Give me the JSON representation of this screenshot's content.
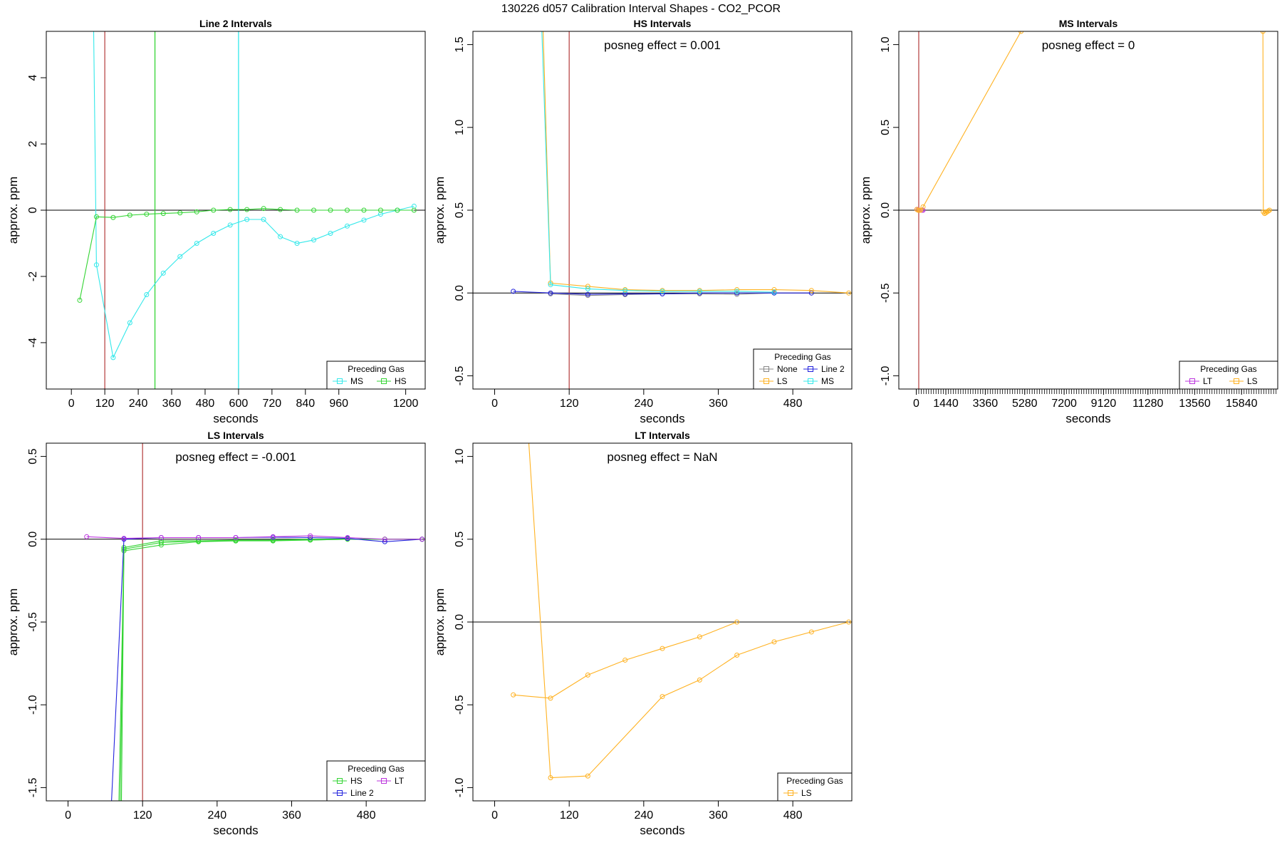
{
  "figure_title": "130226  d057   Calibration Interval Shapes - CO2_PCOR",
  "colors": {
    "MS": "#33e8ea",
    "HS": "#33d433",
    "LS": "#ffb222",
    "Line 2": "#2222dd",
    "LT": "#bb33dd",
    "None": "#888888",
    "ref": "#b94a4a",
    "axis": "#000000"
  },
  "chart_data": [
    {
      "type": "line",
      "title": "Line 2 Intervals",
      "xlabel": "seconds",
      "ylabel": "approx. ppm",
      "xlim": [
        -90,
        1270
      ],
      "ylim": [
        -5.4,
        5.4
      ],
      "xticks": [
        0,
        120,
        240,
        360,
        480,
        600,
        720,
        840,
        960,
        1200
      ],
      "xtick_labels": [
        "0",
        "120",
        "240",
        "360",
        "480",
        "600",
        "720",
        "840",
        "960",
        "1200"
      ],
      "yticks": [
        4,
        2,
        0,
        -2,
        -4
      ],
      "ytick_labels": [
        "4",
        "2",
        "0",
        "-2",
        "-4"
      ],
      "vlines": [
        {
          "x": 120,
          "color": "#b94a4a"
        },
        {
          "x": 300,
          "color": "#33d433"
        },
        {
          "x": 600,
          "color": "#33e8ea"
        }
      ],
      "note": "",
      "legend": {
        "title": "Preceding Gas",
        "entries": [
          "MS",
          "HS"
        ],
        "columns": 2,
        "position": "bottom-right"
      },
      "series": [
        {
          "name": "MS",
          "color": "#33e8ea",
          "lead_from": [
            80,
            5.4
          ],
          "x": [
            90,
            150,
            210,
            270,
            330,
            390,
            450,
            510,
            570,
            630,
            690,
            750,
            810,
            870,
            930,
            990,
            1050,
            1110,
            1170,
            1230
          ],
          "y": [
            -1.65,
            -4.45,
            -3.4,
            -2.55,
            -1.9,
            -1.4,
            -1.0,
            -0.7,
            -0.45,
            -0.28,
            -0.28,
            -0.8,
            -1.0,
            -0.9,
            -0.7,
            -0.48,
            -0.3,
            -0.12,
            0.0,
            0.12
          ]
        },
        {
          "name": "HS",
          "color": "#33d433",
          "x": [
            30,
            90,
            150,
            210,
            270,
            330,
            390,
            450,
            510,
            570,
            630,
            690,
            750,
            810,
            870,
            930,
            990,
            1050,
            1110,
            1170,
            1230
          ],
          "y": [
            -2.72,
            -0.2,
            -0.22,
            -0.15,
            -0.12,
            -0.1,
            -0.08,
            -0.05,
            0.0,
            0.02,
            0.02,
            0.05,
            0.02,
            0.0,
            0.0,
            0.0,
            0.0,
            0.0,
            0.0,
            0.0,
            0.0
          ]
        }
      ]
    },
    {
      "type": "line",
      "title": "HS Intervals",
      "xlabel": "seconds",
      "ylabel": "approx. ppm",
      "xlim": [
        -35,
        575
      ],
      "ylim": [
        -0.58,
        1.58
      ],
      "xticks": [
        0,
        120,
        240,
        360,
        480
      ],
      "xtick_labels": [
        "0",
        "120",
        "240",
        "360",
        "480"
      ],
      "yticks": [
        1.5,
        1.0,
        0.5,
        0.0,
        -0.5
      ],
      "ytick_labels": [
        "1.5",
        "1.0",
        "0.5",
        "0.0",
        "-0.5"
      ],
      "vlines": [
        {
          "x": 120,
          "color": "#b94a4a"
        }
      ],
      "note": "posneg effect = 0.001",
      "legend": {
        "title": "Preceding Gas",
        "entries": [
          "None",
          "Line 2",
          "LS",
          "MS"
        ],
        "columns": 2,
        "position": "bottom-right"
      },
      "series": [
        {
          "name": "None",
          "color": "#888888",
          "x": [
            90,
            150,
            210,
            270,
            330,
            390,
            450,
            510
          ],
          "y": [
            -0.005,
            -0.015,
            -0.01,
            -0.005,
            -0.005,
            -0.008,
            0.0,
            0.0
          ]
        },
        {
          "name": "Line 2",
          "color": "#2222dd",
          "x": [
            30,
            90,
            150,
            210,
            270,
            330,
            390,
            450,
            510
          ],
          "y": [
            0.01,
            0.0,
            -0.008,
            -0.005,
            -0.005,
            0.0,
            0.0,
            0.0,
            0.0
          ]
        },
        {
          "name": "LS",
          "color": "#ffb222",
          "lead_from": [
            78,
            1.58
          ],
          "x": [
            90,
            150,
            210,
            270,
            330,
            390,
            450,
            510,
            570
          ],
          "y": [
            0.06,
            0.04,
            0.02,
            0.015,
            0.015,
            0.02,
            0.02,
            0.015,
            0.0
          ]
        },
        {
          "name": "MS",
          "color": "#33e8ea",
          "lead_from": [
            76,
            1.58
          ],
          "x": [
            90,
            150,
            210,
            270,
            330,
            390,
            450
          ],
          "y": [
            0.05,
            0.025,
            0.015,
            0.01,
            0.01,
            0.01,
            0.005
          ]
        }
      ]
    },
    {
      "type": "line",
      "title": "MS Intervals",
      "xlabel": "seconds",
      "ylabel": "approx. ppm",
      "xlim": [
        -850,
        17600
      ],
      "ylim": [
        -1.08,
        1.08
      ],
      "xticks": [
        0,
        1440,
        3360,
        5280,
        7200,
        9120,
        11280,
        13560,
        15840
      ],
      "xtick_labels": [
        "0",
        "1440",
        "3360",
        "5280",
        "7200",
        "9120",
        "11280",
        "13560",
        "15840"
      ],
      "minor_tick_step": 120,
      "yticks": [
        1.0,
        0.5,
        0.0,
        -0.5,
        -1.0
      ],
      "ytick_labels": [
        "1.0",
        "0.5",
        "0.0",
        "-0.5",
        "-1.0"
      ],
      "vlines": [
        {
          "x": 120,
          "color": "#b94a4a"
        }
      ],
      "note": "posneg effect = 0",
      "legend": {
        "title": "Preceding Gas",
        "entries": [
          "LT",
          "LS"
        ],
        "columns": 2,
        "position": "bottom-right"
      },
      "series": [
        {
          "name": "LT",
          "color": "#bb33dd",
          "x": [
            30,
            90,
            150,
            210,
            270,
            330
          ],
          "y": [
            0.005,
            0.003,
            0.0,
            0.0,
            0.0,
            0.0
          ]
        },
        {
          "name": "LS",
          "color": "#ffb222",
          "x": [
            30,
            90,
            150,
            210,
            330,
            5100,
            16880,
            16900,
            16960,
            17020,
            17080,
            17140,
            17200
          ],
          "y": [
            0.005,
            0.0,
            0.0,
            0.0,
            0.02,
            1.08,
            1.08,
            -0.01,
            -0.02,
            -0.015,
            -0.01,
            -0.005,
            0.0
          ]
        }
      ]
    },
    {
      "type": "line",
      "title": "LS Intervals",
      "xlabel": "seconds",
      "ylabel": "approx. ppm",
      "xlim": [
        -35,
        575
      ],
      "ylim": [
        -1.58,
        0.58
      ],
      "xticks": [
        0,
        120,
        240,
        360,
        480
      ],
      "xtick_labels": [
        "0",
        "120",
        "240",
        "360",
        "480"
      ],
      "yticks": [
        0.5,
        0.0,
        -0.5,
        -1.0,
        -1.5
      ],
      "ytick_labels": [
        "0.5",
        "0.0",
        "-0.5",
        "-1.0",
        "-1.5"
      ],
      "vlines": [
        {
          "x": 120,
          "color": "#b94a4a"
        }
      ],
      "note": "posneg effect = -0.001",
      "legend": {
        "title": "Preceding Gas",
        "entries": [
          "HS",
          "LT",
          "Line 2"
        ],
        "columns": 2,
        "position": "bottom-right"
      },
      "series": [
        {
          "name": "HS",
          "color": "#33d433",
          "lead_from": [
            82,
            -1.58
          ],
          "x": [
            90,
            150,
            210,
            270,
            330,
            390,
            450,
            510,
            570
          ],
          "y": [
            -0.05,
            -0.01,
            -0.01,
            -0.005,
            -0.005,
            0.0,
            0.0,
            0.0,
            0.0
          ]
        },
        {
          "name": "HS",
          "color": "#33d433",
          "lead_from": [
            84,
            -1.58
          ],
          "x": [
            90,
            150,
            210,
            270,
            330,
            390,
            450,
            510,
            570
          ],
          "y": [
            -0.06,
            -0.02,
            -0.01,
            -0.01,
            -0.005,
            -0.005,
            0.0,
            0.0,
            0.0
          ]
        },
        {
          "name": "HS",
          "color": "#33d433",
          "lead_from": [
            86,
            -1.58
          ],
          "x": [
            90,
            150,
            210,
            270,
            330,
            390,
            450,
            510,
            570
          ],
          "y": [
            -0.07,
            -0.035,
            -0.015,
            -0.01,
            -0.01,
            -0.005,
            0.0,
            0.0,
            0.0
          ]
        },
        {
          "name": "Line 2",
          "color": "#2222dd",
          "lead_from": [
            70,
            -1.58
          ],
          "x": [
            90,
            150,
            210,
            270,
            330,
            390,
            450,
            510,
            570
          ],
          "y": [
            0.0,
            0.01,
            0.01,
            0.01,
            0.012,
            0.01,
            0.005,
            -0.015,
            0.0
          ]
        },
        {
          "name": "LT",
          "color": "#bb33dd",
          "x": [
            30,
            90,
            150,
            210,
            270,
            330,
            390,
            450,
            510,
            570
          ],
          "y": [
            0.015,
            0.005,
            0.01,
            0.01,
            0.01,
            0.015,
            0.02,
            0.01,
            0.0,
            0.0
          ]
        }
      ]
    },
    {
      "type": "line",
      "title": "LT Intervals",
      "xlabel": "seconds",
      "ylabel": "approx. ppm",
      "xlim": [
        -35,
        575
      ],
      "ylim": [
        -1.08,
        1.08
      ],
      "xticks": [
        0,
        120,
        240,
        360,
        480
      ],
      "xtick_labels": [
        "0",
        "120",
        "240",
        "360",
        "480"
      ],
      "yticks": [
        1.0,
        0.5,
        0.0,
        -0.5,
        -1.0
      ],
      "ytick_labels": [
        "1.0",
        "0.5",
        "0.0",
        "-0.5",
        "-1.0"
      ],
      "vlines": [],
      "note": "posneg effect = NaN",
      "legend": {
        "title": "Preceding Gas",
        "entries": [
          "LS"
        ],
        "columns": 1,
        "position": "bottom-right"
      },
      "series": [
        {
          "name": "LS",
          "color": "#ffb222",
          "x": [
            30,
            90,
            150,
            210,
            270,
            330,
            390
          ],
          "y": [
            -0.44,
            -0.46,
            -0.32,
            -0.23,
            -0.16,
            -0.09,
            0.0
          ]
        },
        {
          "name": "LS",
          "color": "#ffb222",
          "lead_from": [
            55,
            1.08
          ],
          "x": [
            90,
            150,
            270,
            330,
            390,
            450,
            510,
            570
          ],
          "y": [
            -0.94,
            -0.93,
            -0.45,
            -0.35,
            -0.2,
            -0.12,
            -0.06,
            0.0
          ]
        }
      ]
    }
  ]
}
